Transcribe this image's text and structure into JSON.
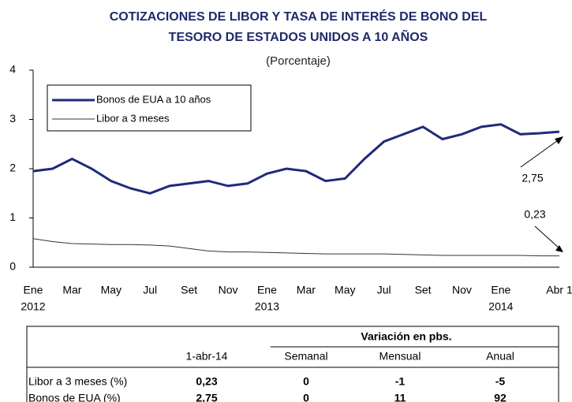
{
  "chart_data": {
    "type": "line",
    "title": [
      "COTIZACIONES DE LIBOR Y TASA DE INTERÉS DE BONO DEL",
      "TESORO DE ESTADOS UNIDOS A 10 AÑOS"
    ],
    "subtitle": "(Porcentaje)",
    "x": [
      "2012-01",
      "2012-02",
      "2012-03",
      "2012-04",
      "2012-05",
      "2012-06",
      "2012-07",
      "2012-08",
      "2012-09",
      "2012-10",
      "2012-11",
      "2012-12",
      "2013-01",
      "2013-02",
      "2013-03",
      "2013-04",
      "2013-05",
      "2013-06",
      "2013-07",
      "2013-08",
      "2013-09",
      "2013-10",
      "2013-11",
      "2013-12",
      "2014-01",
      "2014-02",
      "2014-03",
      "2014-04-01"
    ],
    "series": [
      {
        "name": "Bonos de EUA a 10 años",
        "color": "#1f2a7a",
        "width": 3,
        "values": [
          1.95,
          2.0,
          2.2,
          2.0,
          1.75,
          1.6,
          1.5,
          1.65,
          1.7,
          1.75,
          1.65,
          1.7,
          1.9,
          2.0,
          1.95,
          1.75,
          1.8,
          2.2,
          2.55,
          2.7,
          2.85,
          2.6,
          2.7,
          2.85,
          2.9,
          2.7,
          2.72,
          2.75
        ]
      },
      {
        "name": "Libor a 3 meses",
        "color": "#333344",
        "width": 1,
        "values": [
          0.58,
          0.52,
          0.48,
          0.47,
          0.46,
          0.46,
          0.45,
          0.43,
          0.38,
          0.33,
          0.31,
          0.31,
          0.3,
          0.29,
          0.28,
          0.27,
          0.27,
          0.27,
          0.27,
          0.26,
          0.25,
          0.24,
          0.24,
          0.24,
          0.24,
          0.24,
          0.23,
          0.23
        ]
      }
    ],
    "annotations": [
      "2,75",
      "0,23"
    ],
    "xlim": [
      "2012-01",
      "2014-04-01"
    ],
    "xticks": [
      {
        "value": "2012-01",
        "label": "Ene"
      },
      {
        "value": "2012-03",
        "label": "Mar"
      },
      {
        "value": "2012-05",
        "label": "May"
      },
      {
        "value": "2012-07",
        "label": "Jul"
      },
      {
        "value": "2012-09",
        "label": "Set"
      },
      {
        "value": "2012-11",
        "label": "Nov"
      },
      {
        "value": "2013-01",
        "label": "Ene"
      },
      {
        "value": "2013-03",
        "label": "Mar"
      },
      {
        "value": "2013-05",
        "label": "May"
      },
      {
        "value": "2013-07",
        "label": "Jul"
      },
      {
        "value": "2013-09",
        "label": "Set"
      },
      {
        "value": "2013-11",
        "label": "Nov"
      },
      {
        "value": "2014-01",
        "label": "Ene"
      },
      {
        "value": "2014-04-01",
        "label": "Abr 1"
      }
    ],
    "xtick_years": [
      {
        "value": "2012-01",
        "label": "2012"
      },
      {
        "value": "2013-01",
        "label": "2013"
      },
      {
        "value": "2014-01",
        "label": "2014"
      }
    ],
    "ylim": [
      0,
      4
    ],
    "yticks": [
      0,
      1,
      2,
      3,
      4
    ],
    "legend": "upper left"
  },
  "table": {
    "group_header": "Variación en pbs.",
    "columns": [
      "1-abr-14",
      "Semanal",
      "Mensual",
      "Anual"
    ],
    "rows": [
      [
        "Libor a 3 meses (%)",
        "0,23",
        "0",
        "-1",
        "-5"
      ],
      [
        "Bonos de EUA (%)",
        "2,75",
        "0",
        "11",
        "92"
      ]
    ]
  }
}
